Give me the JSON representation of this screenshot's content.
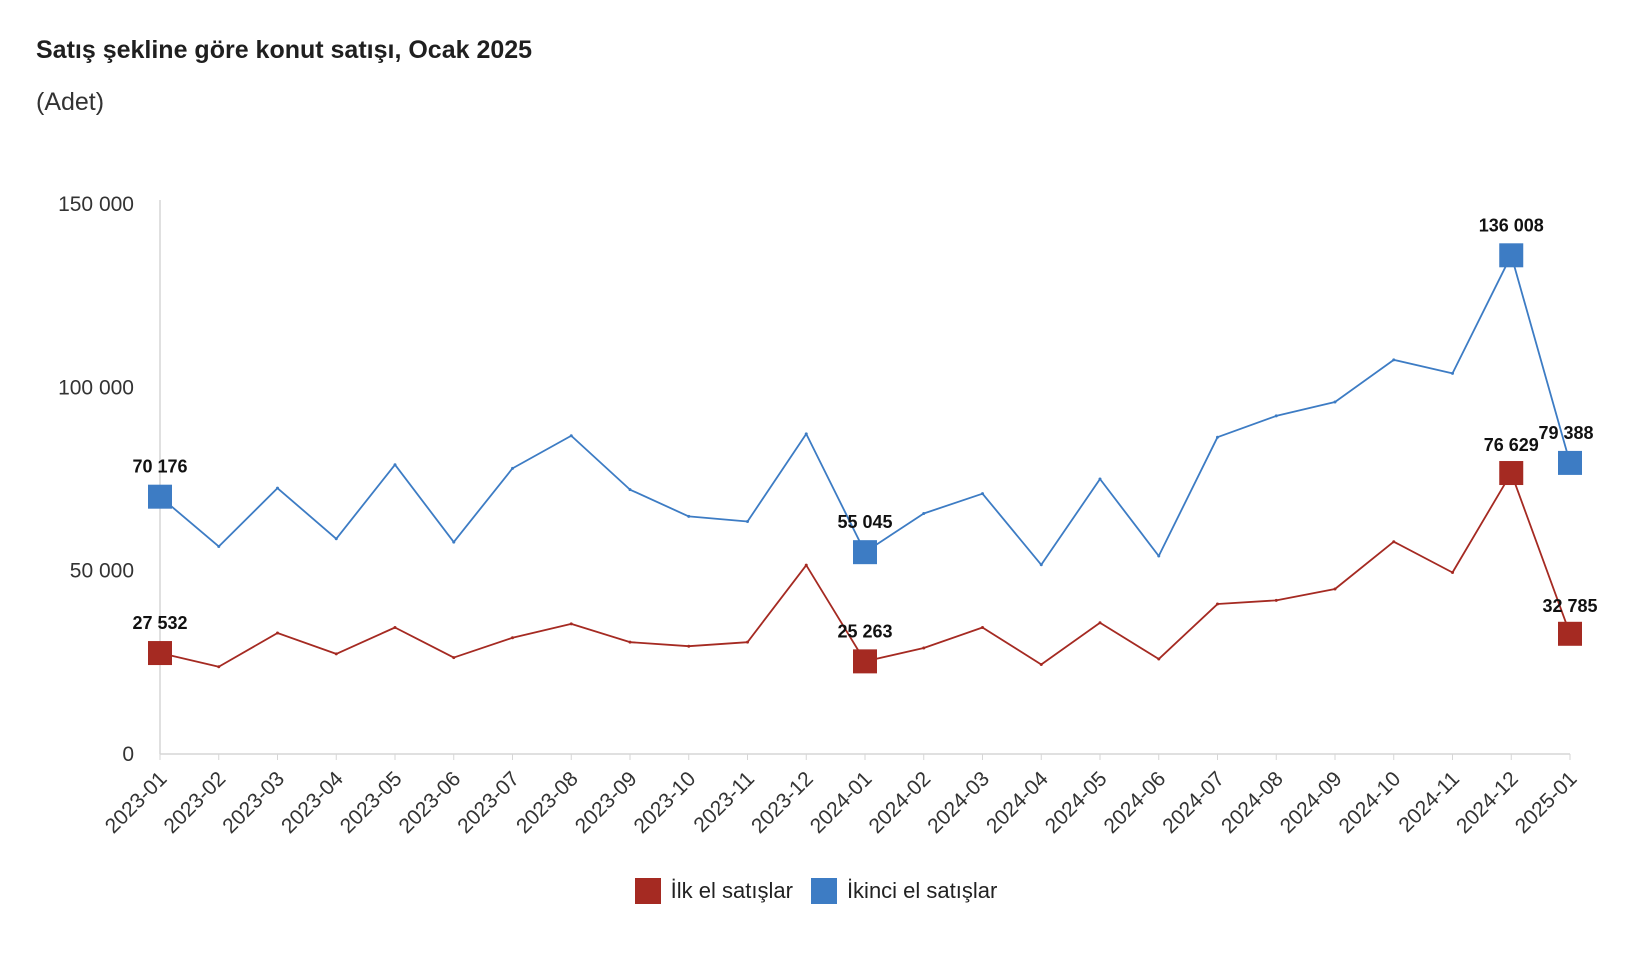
{
  "chart_data": {
    "type": "line",
    "title": "Satış şekline göre konut satışı, Ocak 2025",
    "subtitle": "(Adet)",
    "ylim": [
      0,
      150000
    ],
    "yticks": [
      0,
      50000,
      100000,
      150000
    ],
    "ytick_labels": [
      "0",
      "50 000",
      "100 000",
      "150 000"
    ],
    "grid": false,
    "legend_position": "bottom",
    "categories": [
      "2023-01",
      "2023-02",
      "2023-03",
      "2023-04",
      "2023-05",
      "2023-06",
      "2023-07",
      "2023-08",
      "2023-09",
      "2023-10",
      "2023-11",
      "2023-12",
      "2024-01",
      "2024-02",
      "2024-03",
      "2024-04",
      "2024-05",
      "2024-06",
      "2024-07",
      "2024-08",
      "2024-09",
      "2024-10",
      "2024-11",
      "2024-12",
      "2025-01"
    ],
    "series": [
      {
        "name": "İlk el satışlar",
        "color": "#a52a22",
        "values": [
          27532,
          23800,
          33000,
          27300,
          34500,
          26300,
          31700,
          35500,
          30500,
          29400,
          30500,
          51500,
          25263,
          28900,
          34500,
          24400,
          35800,
          25900,
          40900,
          41900,
          45000,
          57900,
          49500,
          76629,
          32785
        ],
        "markers": [
          0,
          12,
          23,
          24
        ],
        "marker_labels": [
          "27 532",
          "25 263",
          "76 629",
          "32 785"
        ]
      },
      {
        "name": "İkinci el satışlar",
        "color": "#3d7cc4",
        "values": [
          70176,
          56600,
          72500,
          58700,
          78900,
          57800,
          77900,
          86800,
          72100,
          64800,
          63400,
          87300,
          55045,
          65600,
          71000,
          51600,
          75000,
          54000,
          86400,
          92200,
          96000,
          107500,
          103800,
          136008,
          79388
        ],
        "markers": [
          0,
          12,
          23,
          24
        ],
        "marker_labels": [
          "70 176",
          "55 045",
          "136 008",
          "79 388"
        ]
      }
    ]
  },
  "legend": {
    "items": [
      {
        "label": "İlk el satışlar",
        "color": "#a52a22"
      },
      {
        "label": "İkinci el satışlar",
        "color": "#3d7cc4"
      }
    ]
  }
}
